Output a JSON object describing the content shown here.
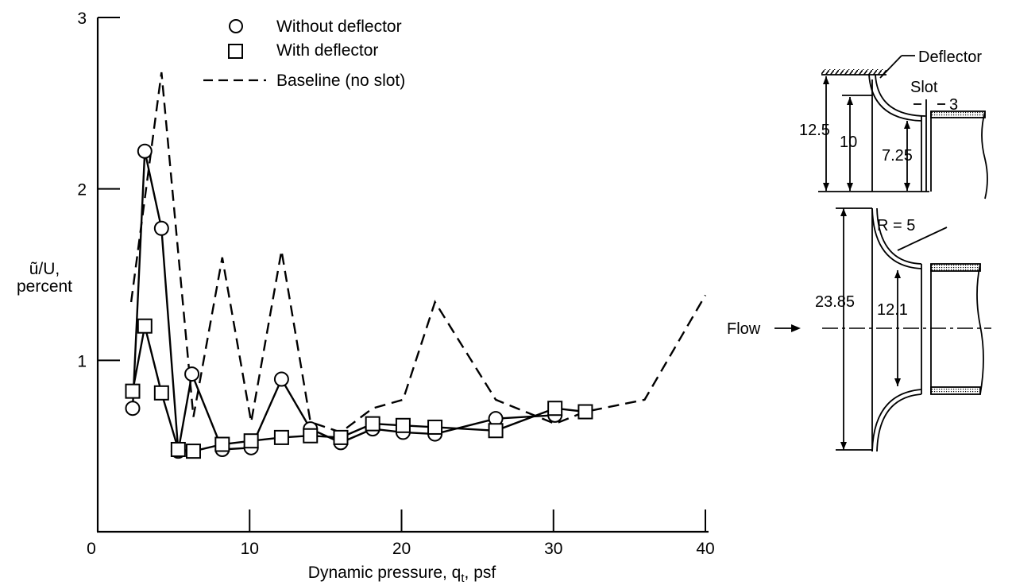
{
  "chart_data": {
    "type": "line",
    "xlabel": "Dynamic pressure, q",
    "xlabel_subscript": "t",
    "xlabel_unit": ", psf",
    "ylabel_line1": "ũ/U,",
    "ylabel_line2": "percent",
    "xlim": [
      0,
      40
    ],
    "ylim": [
      0,
      3
    ],
    "x_ticks": [
      0,
      10,
      20,
      30,
      40
    ],
    "y_ticks": [
      1,
      2,
      3
    ],
    "x_tick_labels": [
      "0",
      "10",
      "20",
      "30",
      "40"
    ],
    "y_tick_labels": [
      "1",
      "2",
      "3"
    ],
    "grid": false,
    "legend_position": "top-left",
    "series": [
      {
        "name": "Without deflector",
        "marker": "circle",
        "line": "solid",
        "x": [
          2.3,
          3.1,
          4.2,
          5.3,
          6.2,
          8.2,
          10.1,
          12.1,
          14.0,
          16.0,
          18.1,
          20.1,
          22.2,
          26.2,
          30.1
        ],
        "y": [
          0.72,
          2.22,
          1.77,
          0.47,
          0.92,
          0.48,
          0.49,
          0.89,
          0.6,
          0.52,
          0.6,
          0.58,
          0.57,
          0.66,
          0.68
        ]
      },
      {
        "name": "With deflector",
        "marker": "square",
        "line": "solid",
        "x": [
          2.3,
          3.1,
          4.2,
          5.3,
          6.3,
          8.2,
          10.1,
          12.1,
          14.0,
          16.0,
          18.1,
          20.1,
          22.2,
          26.2,
          30.1,
          32.1
        ],
        "y": [
          0.82,
          1.2,
          0.81,
          0.48,
          0.47,
          0.51,
          0.53,
          0.55,
          0.56,
          0.55,
          0.63,
          0.62,
          0.61,
          0.59,
          0.72,
          0.7
        ]
      },
      {
        "name": "Baseline (no slot)",
        "marker": "none",
        "line": "dashed",
        "x": [
          2.2,
          4.2,
          6.3,
          8.2,
          10.1,
          12.1,
          14.0,
          16.0,
          18.1,
          20.1,
          22.2,
          26.2,
          30.1,
          32.1,
          36.0,
          40.0
        ],
        "y": [
          1.34,
          2.68,
          0.67,
          1.6,
          0.64,
          1.64,
          0.64,
          0.58,
          0.72,
          0.77,
          1.34,
          0.77,
          0.63,
          0.7,
          0.77,
          1.38
        ]
      }
    ]
  },
  "diagram": {
    "labels": {
      "deflector": "Deflector",
      "slot": "Slot",
      "slot_width": "3",
      "dim_outer": "12.5",
      "dim_mid": "10",
      "dim_inner": "7.25",
      "radius": "R = 5",
      "dia_outer": "23.85",
      "dia_inner": "12.1",
      "flow": "Flow"
    }
  }
}
